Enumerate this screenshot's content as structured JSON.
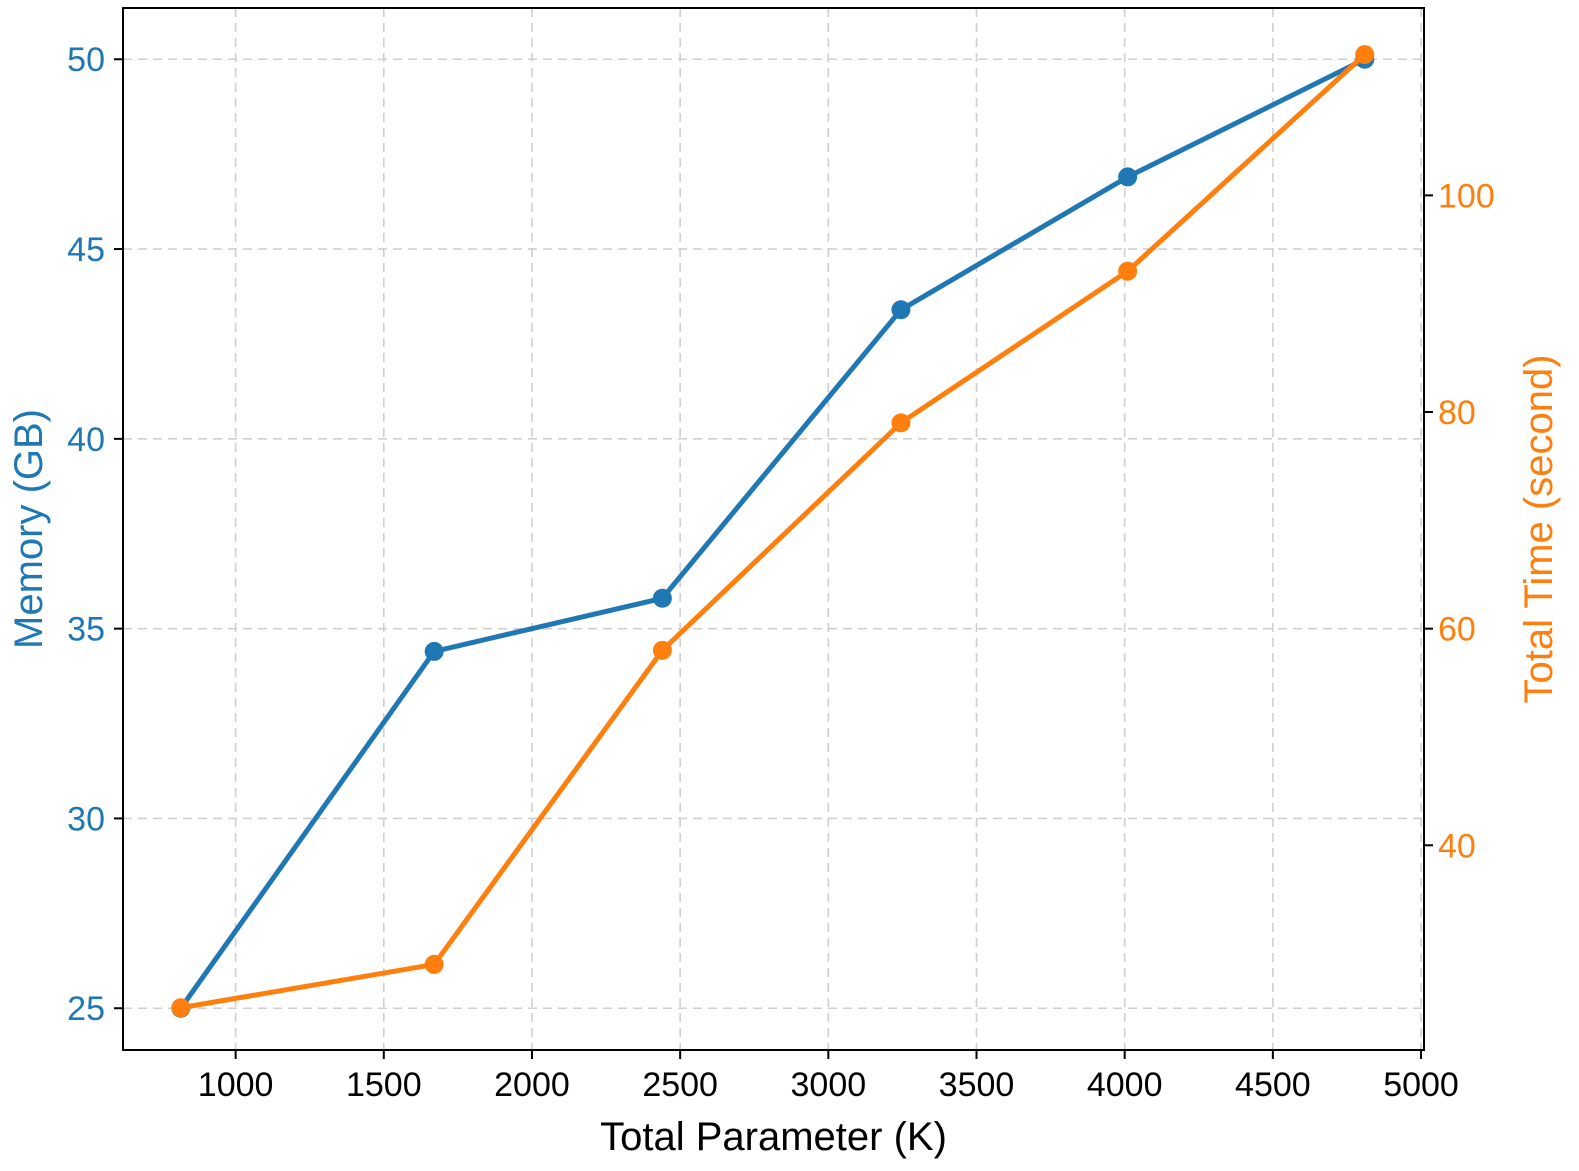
{
  "chart_data": {
    "type": "line",
    "xlabel": "Total Parameter (K)",
    "ylabel_left": "Memory (GB)",
    "ylabel_right": "Total Time (second)",
    "x": [
      815,
      1670,
      2440,
      3245,
      4010,
      4810
    ],
    "x_ticks": [
      1000,
      1500,
      2000,
      2500,
      3000,
      3500,
      4000,
      4500,
      5000
    ],
    "y_left_ticks": [
      25,
      30,
      35,
      40,
      45,
      50
    ],
    "y_right_ticks": [
      40,
      60,
      80,
      100
    ],
    "xlim": [
      620,
      5010
    ],
    "ylim_left": [
      23.9,
      51.35
    ],
    "ylim_right": [
      21.1,
      117.3
    ],
    "grid": true,
    "series": [
      {
        "name": "Memory (GB)",
        "axis": "left",
        "color": "#1f77b4",
        "marker": "circle",
        "values": [
          25.0,
          34.4,
          35.8,
          43.4,
          46.9,
          50.0
        ]
      },
      {
        "name": "Total Time (second)",
        "axis": "right",
        "color": "#ff7f0e",
        "marker": "circle",
        "values": [
          25.0,
          29.0,
          58.0,
          79.0,
          93.0,
          113.0
        ]
      }
    ]
  }
}
